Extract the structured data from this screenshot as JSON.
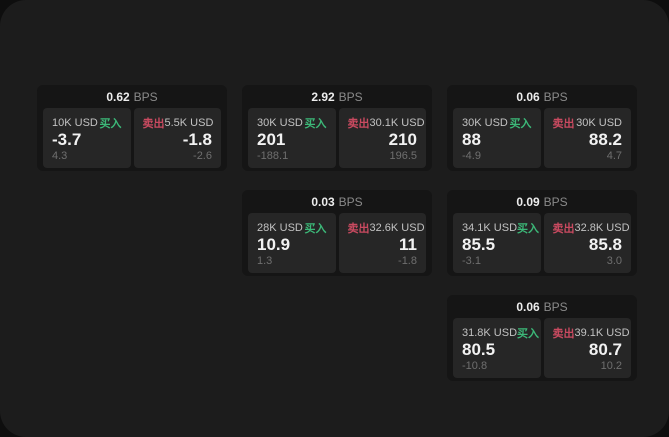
{
  "colors": {
    "buy_green": "#3cb878",
    "sell_red": "#c94a60",
    "card_background": "#151515",
    "tile_background": "#262626",
    "page_background": "#1c1c1c"
  },
  "cards": [
    {
      "grid": {
        "row": 1,
        "col": 1
      },
      "bps_value": "0.62",
      "bps_unit": "BPS",
      "buy": {
        "notional": "10K USD",
        "side": "买入",
        "price": "-3.7",
        "sub": "4.3"
      },
      "sell": {
        "side": "卖出",
        "notional": "5.5K USD",
        "price": "-1.8",
        "sub": "-2.6"
      }
    },
    {
      "grid": {
        "row": 1,
        "col": 2
      },
      "bps_value": "2.92",
      "bps_unit": "BPS",
      "buy": {
        "notional": "30K USD",
        "side": "买入",
        "price": "201",
        "sub": "-188.1"
      },
      "sell": {
        "side": "卖出",
        "notional": "30.1K USD",
        "price": "210",
        "sub": "196.5"
      }
    },
    {
      "grid": {
        "row": 1,
        "col": 3
      },
      "bps_value": "0.06",
      "bps_unit": "BPS",
      "buy": {
        "notional": "30K USD",
        "side": "买入",
        "price": "88",
        "sub": "-4.9"
      },
      "sell": {
        "side": "卖出",
        "notional": "30K USD",
        "price": "88.2",
        "sub": "4.7"
      }
    },
    {
      "grid": {
        "row": 2,
        "col": 2
      },
      "bps_value": "0.03",
      "bps_unit": "BPS",
      "buy": {
        "notional": "28K USD",
        "side": "买入",
        "price": "10.9",
        "sub": "1.3"
      },
      "sell": {
        "side": "卖出",
        "notional": "32.6K USD",
        "price": "11",
        "sub": "-1.8"
      }
    },
    {
      "grid": {
        "row": 2,
        "col": 3
      },
      "bps_value": "0.09",
      "bps_unit": "BPS",
      "buy": {
        "notional": "34.1K USD",
        "side": "买入",
        "price": "85.5",
        "sub": "-3.1"
      },
      "sell": {
        "side": "卖出",
        "notional": "32.8K USD",
        "price": "85.8",
        "sub": "3.0"
      }
    },
    {
      "grid": {
        "row": 3,
        "col": 3
      },
      "bps_value": "0.06",
      "bps_unit": "BPS",
      "buy": {
        "notional": "31.8K USD",
        "side": "买入",
        "price": "80.5",
        "sub": "-10.8"
      },
      "sell": {
        "side": "卖出",
        "notional": "39.1K USD",
        "price": "80.7",
        "sub": "10.2"
      }
    }
  ]
}
